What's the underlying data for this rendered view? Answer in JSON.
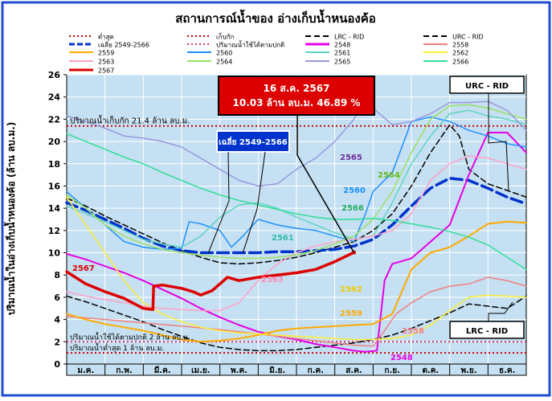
{
  "chart_data": {
    "type": "line",
    "title": "สถานการณ์น้ำของ อ่างเก็บน้ำหนองค้อ",
    "ylabel": "ปริมาณน้ำในอ่างเก็บน้ำหนองค้อ (ล้าน ลบ.ม.)",
    "xlabel": "",
    "ylim": [
      0,
      26
    ],
    "yticks": [
      0,
      2,
      4,
      6,
      8,
      10,
      12,
      14,
      16,
      18,
      20,
      22,
      24,
      26
    ],
    "xlim": [
      0,
      12
    ],
    "months": [
      "ม.ค.",
      "ก.พ.",
      "มี.ค.",
      "เม.ย.",
      "พ.ค.",
      "มิ.ย.",
      "ก.ค.",
      "ส.ค.",
      "ก.ย.",
      "ต.ค.",
      "พ.ย.",
      "ธ.ค."
    ],
    "grid": true,
    "legend_position": "top",
    "reference_lines": [
      {
        "name": "ต่ำสุด",
        "value": 1,
        "color": "#cc0000",
        "style": "dotted",
        "label": "ปริมาณน้ำต่ำสุด 1 ล้าน ลบ.ม."
      },
      {
        "name": "เก็บกัก",
        "value": 21.4,
        "color": "#cc0000",
        "style": "dotted",
        "label": "ปริมาณน้ำเก็บกัก 21.4 ล้าน ลบ.ม."
      },
      {
        "name": "ปริมาณน้ำใช้ได้ตามปกติ",
        "value": 2,
        "color": "#cc3366",
        "style": "dotted",
        "label": "ปริมาณน้ำใช้ได้ตามปกติ 2 ล้าน ลบ.ม."
      }
    ],
    "series": [
      {
        "name": "LRC - RID",
        "color": "#000000",
        "style": "dashed",
        "width": 1.5,
        "x": [
          0,
          0.5,
          1,
          1.5,
          2,
          2.5,
          3,
          3.5,
          4,
          4.5,
          5,
          5.5,
          6,
          6.5,
          7,
          7.5,
          8,
          8.5,
          9,
          9.5,
          10,
          10.5,
          11,
          11.5,
          12
        ],
        "y": [
          6.1,
          5.6,
          5.0,
          4.4,
          3.8,
          3.1,
          2.5,
          1.9,
          1.5,
          1.3,
          1.2,
          1.2,
          1.3,
          1.5,
          1.7,
          1.9,
          2.2,
          2.6,
          3.2,
          3.9,
          4.6,
          5.4,
          5.2,
          5.0,
          6.1
        ]
      },
      {
        "name": "URC - RID",
        "color": "#000000",
        "style": "dashed",
        "width": 1.5,
        "x": [
          0,
          0.5,
          1,
          1.5,
          2,
          2.5,
          3,
          3.5,
          4,
          4.5,
          5,
          5.5,
          6,
          6.5,
          7,
          7.5,
          8,
          8.5,
          9,
          9.5,
          10,
          10.25,
          10.5,
          11,
          11.5,
          12
        ],
        "y": [
          14.9,
          14.2,
          13.3,
          12.5,
          11.7,
          10.9,
          10.2,
          9.6,
          9.1,
          9.0,
          9.1,
          9.3,
          9.6,
          10.0,
          10.5,
          11.0,
          12.0,
          13.5,
          16.0,
          19.0,
          21.5,
          20.5,
          17.5,
          16.2,
          15.6,
          15.0
        ]
      },
      {
        "name": "เฉลี่ย 2549-2566",
        "color": "#0033cc",
        "style": "long-dash",
        "width": 3.5,
        "x": [
          0,
          0.5,
          1,
          1.5,
          2,
          2.5,
          3,
          3.5,
          4,
          4.5,
          5,
          5.5,
          6,
          6.5,
          7,
          7.5,
          8,
          8.5,
          9,
          9.5,
          10,
          10.5,
          11,
          11.5,
          12
        ],
        "y": [
          14.5,
          13.8,
          13.0,
          12.2,
          11.3,
          10.6,
          10.2,
          10.0,
          10.0,
          10.0,
          10.0,
          10.1,
          10.1,
          10.2,
          10.3,
          10.6,
          11.2,
          12.5,
          14.2,
          15.8,
          16.7,
          16.5,
          15.8,
          15.0,
          14.4
        ]
      },
      {
        "name": "2548",
        "color": "#e600e6",
        "style": "solid",
        "width": 2,
        "x": [
          0,
          0.5,
          1,
          1.5,
          2,
          2.5,
          3,
          3.5,
          4,
          4.5,
          5,
          5.5,
          6,
          6.5,
          7,
          7.5,
          7.8,
          8.1,
          8.3,
          8.5,
          9,
          9.5,
          10,
          10.5,
          11,
          11.5,
          12
        ],
        "y": [
          9.9,
          9.4,
          8.8,
          8.2,
          7.5,
          6.7,
          5.9,
          5.0,
          4.2,
          3.5,
          2.9,
          2.5,
          2.2,
          1.8,
          1.5,
          1.2,
          1.1,
          1.2,
          7.5,
          9.0,
          9.5,
          11.0,
          12.5,
          17.0,
          20.8,
          20.8,
          19.0
        ]
      },
      {
        "name": "2558",
        "color": "#f08080",
        "style": "solid",
        "width": 1.5,
        "x": [
          0,
          1,
          2,
          3,
          4,
          5,
          6,
          7,
          7.5,
          8,
          8.3,
          8.6,
          9,
          9.5,
          10,
          10.5,
          11,
          11.5,
          12
        ],
        "y": [
          4.3,
          4.0,
          3.7,
          3.4,
          3.1,
          2.7,
          2.3,
          1.9,
          1.7,
          1.6,
          3.0,
          4.5,
          5.5,
          6.5,
          7.0,
          7.2,
          7.8,
          7.5,
          7.0
        ]
      },
      {
        "name": "2559",
        "color": "#ffaa00",
        "style": "solid",
        "width": 2,
        "x": [
          0,
          0.5,
          1,
          1.5,
          2,
          2.5,
          3,
          3.5,
          4,
          4.5,
          5,
          5.5,
          6,
          6.5,
          7,
          7.5,
          8,
          8.5,
          9,
          9.5,
          10,
          10.5,
          11,
          11.5,
          12
        ],
        "y": [
          4.5,
          4.0,
          3.6,
          3.3,
          3.0,
          2.6,
          2.2,
          2.0,
          2.1,
          2.3,
          2.6,
          3.0,
          3.2,
          3.3,
          3.4,
          3.5,
          3.6,
          4.5,
          8.5,
          10.0,
          10.5,
          11.5,
          12.6,
          12.8,
          12.7
        ]
      },
      {
        "name": "2560",
        "color": "#1e90ff",
        "style": "solid",
        "width": 1.5,
        "x": [
          0,
          0.5,
          1,
          1.5,
          2,
          2.5,
          3,
          3.2,
          3.5,
          4,
          4.3,
          4.6,
          5,
          5.5,
          6,
          6.5,
          7,
          7.5,
          7.8,
          8,
          8.5,
          9,
          9.5,
          10,
          10.5,
          11,
          11.5,
          12
        ],
        "y": [
          15.5,
          14.0,
          12.5,
          11.0,
          10.5,
          10.3,
          10.4,
          12.8,
          12.6,
          12.0,
          10.5,
          11.5,
          13.0,
          12.5,
          12.2,
          12.0,
          11.5,
          11.0,
          13.5,
          15.5,
          17.2,
          21.8,
          22.2,
          21.8,
          21.0,
          20.5,
          19.8,
          19.5
        ]
      },
      {
        "name": "2561",
        "color": "#5fd3c0",
        "style": "solid",
        "width": 1.5,
        "x": [
          0,
          0.5,
          1,
          1.5,
          2,
          2.5,
          3,
          3.5,
          4,
          4.5,
          5,
          5.5,
          6,
          6.5,
          7,
          7.5,
          8,
          8.5,
          9,
          9.5,
          10,
          10.5,
          11,
          11.5,
          12
        ],
        "y": [
          14.2,
          13.5,
          12.8,
          12.0,
          11.2,
          10.8,
          10.5,
          11.5,
          13.2,
          14.3,
          14.5,
          14.0,
          13.2,
          12.5,
          11.8,
          11.2,
          11.5,
          14.5,
          18.0,
          20.5,
          22.5,
          22.8,
          22.3,
          22.0,
          21.5
        ]
      },
      {
        "name": "2562",
        "color": "#ffee33",
        "style": "solid",
        "width": 1.5,
        "x": [
          0,
          0.5,
          1,
          1.5,
          2,
          2.5,
          3,
          3.5,
          4,
          4.5,
          5,
          5.5,
          6,
          6.5,
          7,
          7.5,
          8,
          8.5,
          9,
          9.5,
          10,
          10.5,
          11,
          11.5,
          12
        ],
        "y": [
          15.0,
          12.5,
          10.0,
          7.5,
          5.5,
          4.5,
          3.8,
          3.3,
          3.0,
          2.8,
          2.7,
          2.6,
          2.5,
          2.4,
          2.3,
          2.2,
          2.2,
          2.3,
          2.6,
          3.5,
          4.8,
          6.0,
          6.2,
          6.1,
          6.0
        ]
      },
      {
        "name": "2563",
        "color": "#ffa0c8",
        "style": "solid",
        "width": 1.5,
        "x": [
          0,
          0.5,
          1,
          1.5,
          2,
          2.5,
          3,
          3.5,
          4,
          4.5,
          5,
          5.5,
          6,
          6.5,
          7,
          7.5,
          8,
          8.5,
          9,
          9.5,
          10,
          10.5,
          11,
          11.5,
          12
        ],
        "y": [
          6.5,
          6.1,
          5.8,
          5.5,
          5.2,
          5.0,
          4.9,
          4.8,
          4.8,
          5.5,
          7.5,
          9.0,
          10.0,
          10.6,
          11.0,
          11.2,
          11.5,
          12.0,
          13.5,
          16.5,
          18.0,
          18.7,
          18.5,
          18.0,
          17.5
        ]
      },
      {
        "name": "2564",
        "color": "#99e066",
        "style": "solid",
        "width": 1.5,
        "x": [
          0,
          0.5,
          1,
          1.5,
          2,
          2.5,
          3,
          3.5,
          4,
          4.5,
          5,
          5.5,
          6,
          6.5,
          7,
          7.5,
          8,
          8.5,
          9,
          9.5,
          10,
          10.5,
          11,
          11.5,
          12
        ],
        "y": [
          15.2,
          14.0,
          12.5,
          11.5,
          10.8,
          10.3,
          10.0,
          9.8,
          9.6,
          9.5,
          9.5,
          9.6,
          9.8,
          10.2,
          10.8,
          11.5,
          13.0,
          15.5,
          19.0,
          22.0,
          23.2,
          23.3,
          23.0,
          22.5,
          22.0
        ]
      },
      {
        "name": "2565",
        "color": "#9999dd",
        "style": "solid",
        "width": 1.5,
        "x": [
          0,
          0.5,
          1,
          1.5,
          2,
          2.5,
          3,
          3.5,
          4,
          4.5,
          5,
          5.5,
          6,
          6.5,
          7,
          7.5,
          7.8,
          8,
          8.5,
          9,
          9.5,
          10,
          10.5,
          11,
          11.5,
          12
        ],
        "y": [
          22.3,
          21.8,
          21.2,
          20.5,
          20.3,
          20.0,
          19.5,
          18.5,
          17.5,
          16.5,
          16.0,
          16.2,
          17.5,
          18.5,
          20.0,
          22.0,
          24.2,
          23.0,
          21.5,
          21.8,
          22.5,
          23.5,
          23.5,
          23.6,
          22.8,
          21.0
        ]
      },
      {
        "name": "2566",
        "color": "#33dd99",
        "style": "solid",
        "width": 1.5,
        "x": [
          0,
          0.5,
          1,
          1.5,
          2,
          2.5,
          3,
          3.5,
          4,
          4.5,
          5,
          5.5,
          6,
          6.5,
          7,
          7.5,
          8,
          8.5,
          9,
          9.5,
          10,
          10.5,
          11,
          11.5,
          12
        ],
        "y": [
          20.7,
          20.0,
          19.3,
          18.6,
          18.0,
          17.2,
          16.5,
          15.8,
          15.2,
          14.7,
          14.3,
          13.9,
          13.5,
          13.2,
          13.0,
          13.0,
          13.1,
          12.9,
          12.6,
          12.3,
          11.9,
          11.4,
          10.7,
          9.6,
          8.5
        ]
      },
      {
        "name": "2567",
        "color": "#dd0000",
        "style": "solid",
        "width": 3.5,
        "x": [
          0,
          0.5,
          1,
          1.5,
          2,
          2.25,
          2.27,
          2.5,
          3,
          3.3,
          3.5,
          3.8,
          4.2,
          4.5,
          5,
          5.5,
          6,
          6.5,
          7,
          7.5
        ],
        "y": [
          8.3,
          7.2,
          6.5,
          5.9,
          5.0,
          4.9,
          7.0,
          7.1,
          6.8,
          6.5,
          6.2,
          6.6,
          7.8,
          7.5,
          7.8,
          8.0,
          8.2,
          8.5,
          9.2,
          10.03
        ]
      }
    ],
    "annotations": {
      "callout": "16 ส.ค. 2567\n10.03 ล้าน ลบ.ม. 46.89 %",
      "callout_line1": "16 ส.ค. 2567",
      "callout_line2": "10.03 ล้าน ลบ.ม. 46.89 %",
      "avg_box": "เฉลี่ย 2549-2566",
      "urc_box": "URC - RID",
      "lrc_box": "LRC - RID",
      "storage_label": "ปริมาณน้ำเก็บกัก 21.4 ล้าน ลบ.ม.",
      "usable_label": "ปริมาณน้ำใช้ได้ตามปกติ 2 ล้าน ลบ.ม.",
      "min_label": "ปริมาณน้ำต่ำสุด 1 ล้าน ลบ.ม.",
      "series_labels": [
        {
          "text": "2567",
          "color": "#dd0000"
        },
        {
          "text": "2565",
          "color": "#7030a0"
        },
        {
          "text": "2564",
          "color": "#66bb22"
        },
        {
          "text": "2560",
          "color": "#1e90ff"
        },
        {
          "text": "2566",
          "color": "#22aa66"
        },
        {
          "text": "2561",
          "color": "#33bbaa"
        },
        {
          "text": "2563",
          "color": "#ff88bb"
        },
        {
          "text": "2562",
          "color": "#eecc00"
        },
        {
          "text": "2559",
          "color": "#ffaa00"
        },
        {
          "text": "2558",
          "color": "#f08080"
        },
        {
          "text": "2548",
          "color": "#e600e6"
        }
      ]
    }
  },
  "legend": [
    {
      "label": "ต่ำสุด",
      "color": "#cc0000",
      "style": "dotted"
    },
    {
      "label": "เก็บกัก",
      "color": "#cc0000",
      "style": "dotted"
    },
    {
      "label": "LRC - RID",
      "color": "#000000",
      "style": "dashed"
    },
    {
      "label": "URC - RID",
      "color": "#000000",
      "style": "dashed"
    },
    {
      "label": "เฉลี่ย 2549-2566",
      "color": "#0033cc",
      "style": "long-dash"
    },
    {
      "label": "ปริมาณน้ำใช้ได้ตามปกติ",
      "color": "#cc3366",
      "style": "dotted"
    },
    {
      "label": "2548",
      "color": "#e600e6",
      "style": "solid"
    },
    {
      "label": "2558",
      "color": "#f08080",
      "style": "solid"
    },
    {
      "label": "2559",
      "color": "#ffaa00",
      "style": "solid"
    },
    {
      "label": "2560",
      "color": "#1e90ff",
      "style": "solid"
    },
    {
      "label": "2561",
      "color": "#5fd3c0",
      "style": "solid"
    },
    {
      "label": "2562",
      "color": "#ffee33",
      "style": "solid"
    },
    {
      "label": "2563",
      "color": "#ffa0c8",
      "style": "solid"
    },
    {
      "label": "2564",
      "color": "#99e066",
      "style": "solid"
    },
    {
      "label": "2565",
      "color": "#9999dd",
      "style": "solid"
    },
    {
      "label": "2566",
      "color": "#33dd99",
      "style": "solid"
    },
    {
      "label": "2567",
      "color": "#dd0000",
      "style": "solid"
    }
  ],
  "colors": {
    "frame_border": "#1f4fd0",
    "plot_background": "#c5e0f2",
    "grid": "#ffffff",
    "title": "#000000",
    "callout_bg": "#dd0000",
    "callout_text": "#ffffff",
    "avg_box_bg": "#0033cc",
    "avg_box_text": "#ffffff"
  }
}
